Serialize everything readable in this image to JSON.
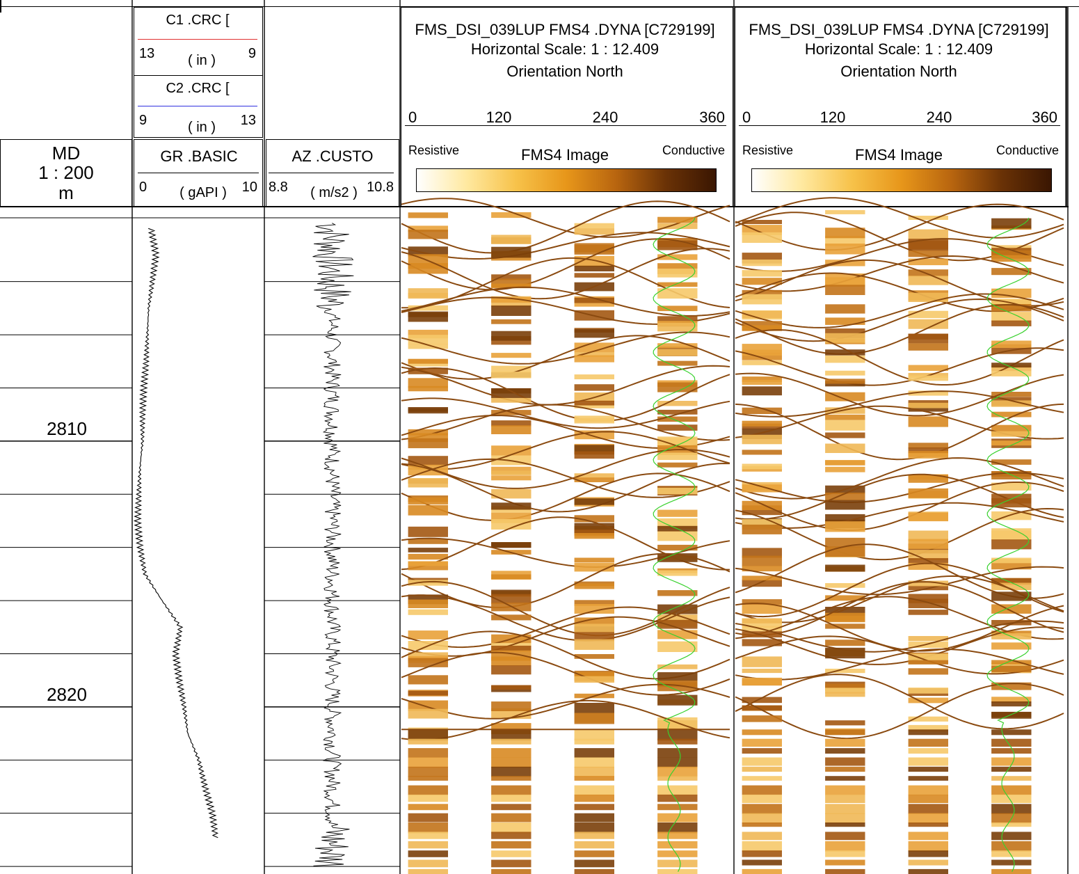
{
  "header": {
    "md": {
      "title": "MD",
      "scale": "1 : 200",
      "unit": "m"
    },
    "c1": {
      "name": "C1 .CRC [",
      "left": "13",
      "unit": "( in )",
      "right": "9",
      "color": "#e03030"
    },
    "c2": {
      "name": "C2 .CRC [",
      "left": "9",
      "unit": "( in )",
      "right": "13",
      "color": "#3030e0"
    },
    "gr": {
      "name": "GR .BASIC",
      "left": "0",
      "unit": "( gAPI )",
      "right": "10"
    },
    "az": {
      "name": "AZ .CUSTO",
      "left": "8.8",
      "unit": "( m/s2 )",
      "right": "10.8"
    },
    "images": [
      {
        "title": "FMS_DSI_039LUP FMS4 .DYNA [C729199]",
        "hscale": "Horizontal Scale: 1 : 12.409",
        "orientation": "Orientation North",
        "ticks": [
          "0",
          "120",
          "240",
          "360"
        ],
        "resistive": "Resistive",
        "label": "FMS4 Image",
        "conductive": "Conductive"
      },
      {
        "title": "FMS_DSI_039LUP FMS4 .DYNA [C729199]",
        "hscale": "Horizontal Scale: 1 : 12.409",
        "orientation": "Orientation North",
        "ticks": [
          "0",
          "120",
          "240",
          "360"
        ],
        "resistive": "Resistive",
        "label": "FMS4 Image",
        "conductive": "Conductive"
      }
    ],
    "palette": [
      "#ffffff",
      "#ffe9a0",
      "#f7c24a",
      "#e7961a",
      "#b8650f",
      "#6a3206",
      "#3a1602"
    ]
  },
  "depth_labels": [
    "2810",
    "2820"
  ],
  "chart_data": {
    "type": "line",
    "title": "",
    "depth_range": [
      2801.5,
      2834.0
    ],
    "depth_ticks": [
      2810,
      2820
    ],
    "grid_interval_m": 2,
    "series": [
      {
        "name": "GR .BASIC",
        "unit": "gAPI",
        "xlim": [
          0,
          10
        ],
        "depth": [
          2802,
          2803,
          2804,
          2805,
          2806,
          2807,
          2808,
          2809,
          2810,
          2811,
          2812,
          2813,
          2814,
          2815,
          2816,
          2817,
          2818,
          2819,
          2820,
          2821,
          2822,
          2823,
          2824,
          2825
        ],
        "values": [
          1.2,
          1.6,
          1.3,
          1.0,
          0.9,
          0.8,
          0.6,
          0.5,
          0.5,
          0.3,
          0.2,
          0.1,
          0.3,
          0.7,
          2.1,
          3.6,
          3.2,
          3.5,
          3.9,
          4.2,
          5.1,
          5.6,
          6.2,
          6.5
        ]
      },
      {
        "name": "AZ .CUSTO",
        "unit": "m/s2",
        "xlim": [
          8.8,
          10.8
        ],
        "depth": [
          2802,
          2803,
          2804,
          2805,
          2806,
          2807,
          2808,
          2809,
          2810,
          2811,
          2812,
          2813,
          2814,
          2815,
          2816,
          2817,
          2818,
          2819,
          2820,
          2821,
          2822,
          2823,
          2824,
          2825
        ],
        "values": [
          9.8,
          9.7,
          9.8,
          9.8,
          9.8,
          9.8,
          9.8,
          9.8,
          9.8,
          9.8,
          9.8,
          9.8,
          9.8,
          9.8,
          9.8,
          9.8,
          9.8,
          9.8,
          9.8,
          9.8,
          9.8,
          9.8,
          9.8,
          9.7
        ]
      }
    ],
    "image_tracks": 2,
    "azimuth_range": [
      0,
      360
    ]
  }
}
